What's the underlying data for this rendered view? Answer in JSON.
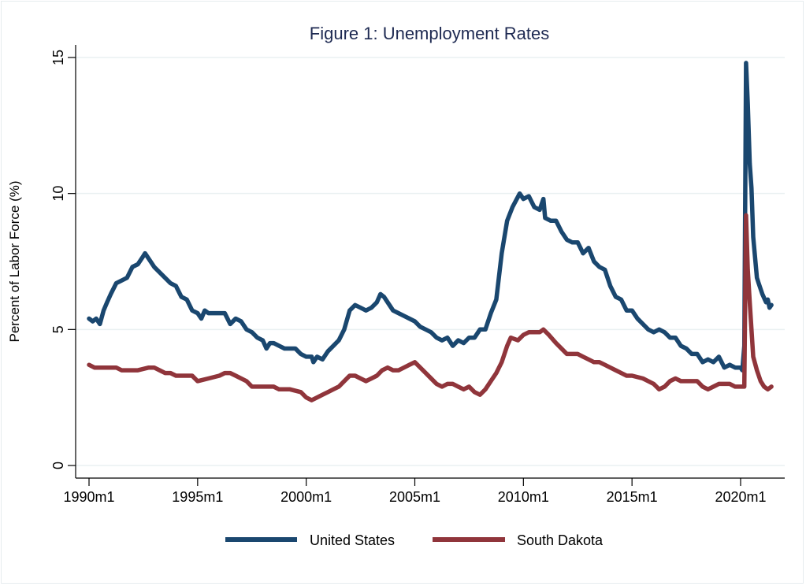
{
  "chart_data": {
    "type": "line",
    "title": "Figure 1: Unemployment Rates",
    "xlabel": "",
    "ylabel": "Percent of Labor Force (%)",
    "xlim": [
      1989.8,
      2022.0
    ],
    "ylim": [
      0,
      15
    ],
    "yticks": [
      0,
      5,
      10,
      15
    ],
    "ytick_labels": [
      "0",
      "5",
      "10",
      "15"
    ],
    "xticks": [
      1990,
      1995,
      2000,
      2005,
      2010,
      2015,
      2020
    ],
    "xtick_labels": [
      "1990m1",
      "1995m1",
      "2000m1",
      "2005m1",
      "2010m1",
      "2015m1",
      "2020m1"
    ],
    "grid": true,
    "legend_position": "bottom",
    "series": [
      {
        "name": "United States",
        "color": "#1a476f",
        "points": [
          [
            1990.0,
            5.4
          ],
          [
            1990.17,
            5.3
          ],
          [
            1990.33,
            5.4
          ],
          [
            1990.5,
            5.2
          ],
          [
            1990.67,
            5.7
          ],
          [
            1990.83,
            6.0
          ],
          [
            1991.0,
            6.3
          ],
          [
            1991.25,
            6.7
          ],
          [
            1991.5,
            6.8
          ],
          [
            1991.75,
            6.9
          ],
          [
            1992.0,
            7.3
          ],
          [
            1992.25,
            7.4
          ],
          [
            1992.5,
            7.7
          ],
          [
            1992.58,
            7.8
          ],
          [
            1992.75,
            7.6
          ],
          [
            1993.0,
            7.3
          ],
          [
            1993.25,
            7.1
          ],
          [
            1993.5,
            6.9
          ],
          [
            1993.75,
            6.7
          ],
          [
            1994.0,
            6.6
          ],
          [
            1994.25,
            6.2
          ],
          [
            1994.5,
            6.1
          ],
          [
            1994.75,
            5.7
          ],
          [
            1995.0,
            5.6
          ],
          [
            1995.17,
            5.4
          ],
          [
            1995.33,
            5.7
          ],
          [
            1995.5,
            5.6
          ],
          [
            1995.75,
            5.6
          ],
          [
            1996.0,
            5.6
          ],
          [
            1996.25,
            5.6
          ],
          [
            1996.5,
            5.2
          ],
          [
            1996.75,
            5.4
          ],
          [
            1997.0,
            5.3
          ],
          [
            1997.25,
            5.0
          ],
          [
            1997.5,
            4.9
          ],
          [
            1997.75,
            4.7
          ],
          [
            1998.0,
            4.6
          ],
          [
            1998.17,
            4.3
          ],
          [
            1998.33,
            4.5
          ],
          [
            1998.5,
            4.5
          ],
          [
            1998.75,
            4.4
          ],
          [
            1999.0,
            4.3
          ],
          [
            1999.25,
            4.3
          ],
          [
            1999.5,
            4.3
          ],
          [
            1999.75,
            4.1
          ],
          [
            2000.0,
            4.0
          ],
          [
            2000.25,
            4.0
          ],
          [
            2000.33,
            3.8
          ],
          [
            2000.5,
            4.0
          ],
          [
            2000.75,
            3.9
          ],
          [
            2001.0,
            4.2
          ],
          [
            2001.25,
            4.4
          ],
          [
            2001.5,
            4.6
          ],
          [
            2001.75,
            5.0
          ],
          [
            2002.0,
            5.7
          ],
          [
            2002.25,
            5.9
          ],
          [
            2002.5,
            5.8
          ],
          [
            2002.75,
            5.7
          ],
          [
            2003.0,
            5.8
          ],
          [
            2003.25,
            6.0
          ],
          [
            2003.42,
            6.3
          ],
          [
            2003.58,
            6.2
          ],
          [
            2003.75,
            6.0
          ],
          [
            2004.0,
            5.7
          ],
          [
            2004.25,
            5.6
          ],
          [
            2004.5,
            5.5
          ],
          [
            2004.75,
            5.4
          ],
          [
            2005.0,
            5.3
          ],
          [
            2005.25,
            5.1
          ],
          [
            2005.5,
            5.0
          ],
          [
            2005.75,
            4.9
          ],
          [
            2006.0,
            4.7
          ],
          [
            2006.25,
            4.6
          ],
          [
            2006.5,
            4.7
          ],
          [
            2006.75,
            4.4
          ],
          [
            2007.0,
            4.6
          ],
          [
            2007.25,
            4.5
          ],
          [
            2007.5,
            4.7
          ],
          [
            2007.75,
            4.7
          ],
          [
            2008.0,
            5.0
          ],
          [
            2008.25,
            5.0
          ],
          [
            2008.5,
            5.6
          ],
          [
            2008.75,
            6.1
          ],
          [
            2009.0,
            7.8
          ],
          [
            2009.25,
            9.0
          ],
          [
            2009.5,
            9.5
          ],
          [
            2009.83,
            10.0
          ],
          [
            2010.0,
            9.8
          ],
          [
            2010.25,
            9.9
          ],
          [
            2010.5,
            9.5
          ],
          [
            2010.75,
            9.4
          ],
          [
            2010.92,
            9.8
          ],
          [
            2011.0,
            9.1
          ],
          [
            2011.25,
            9.0
          ],
          [
            2011.5,
            9.0
          ],
          [
            2011.75,
            8.6
          ],
          [
            2012.0,
            8.3
          ],
          [
            2012.25,
            8.2
          ],
          [
            2012.5,
            8.2
          ],
          [
            2012.75,
            7.8
          ],
          [
            2013.0,
            8.0
          ],
          [
            2013.25,
            7.5
          ],
          [
            2013.5,
            7.3
          ],
          [
            2013.75,
            7.2
          ],
          [
            2014.0,
            6.6
          ],
          [
            2014.25,
            6.2
          ],
          [
            2014.5,
            6.1
          ],
          [
            2014.75,
            5.7
          ],
          [
            2015.0,
            5.7
          ],
          [
            2015.25,
            5.4
          ],
          [
            2015.5,
            5.2
          ],
          [
            2015.75,
            5.0
          ],
          [
            2016.0,
            4.9
          ],
          [
            2016.25,
            5.0
          ],
          [
            2016.5,
            4.9
          ],
          [
            2016.75,
            4.7
          ],
          [
            2017.0,
            4.7
          ],
          [
            2017.25,
            4.4
          ],
          [
            2017.5,
            4.3
          ],
          [
            2017.75,
            4.1
          ],
          [
            2018.0,
            4.1
          ],
          [
            2018.25,
            3.8
          ],
          [
            2018.5,
            3.9
          ],
          [
            2018.75,
            3.8
          ],
          [
            2019.0,
            4.0
          ],
          [
            2019.25,
            3.6
          ],
          [
            2019.5,
            3.7
          ],
          [
            2019.75,
            3.6
          ],
          [
            2020.0,
            3.6
          ],
          [
            2020.08,
            3.5
          ],
          [
            2020.17,
            4.4
          ],
          [
            2020.25,
            14.8
          ],
          [
            2020.33,
            13.3
          ],
          [
            2020.42,
            11.1
          ],
          [
            2020.5,
            10.2
          ],
          [
            2020.58,
            8.4
          ],
          [
            2020.75,
            6.9
          ],
          [
            2020.83,
            6.7
          ],
          [
            2021.0,
            6.3
          ],
          [
            2021.17,
            6.0
          ],
          [
            2021.25,
            6.1
          ],
          [
            2021.33,
            5.8
          ],
          [
            2021.42,
            5.9
          ]
        ]
      },
      {
        "name": "South Dakota",
        "color": "#90353b",
        "points": [
          [
            1990.0,
            3.7
          ],
          [
            1990.25,
            3.6
          ],
          [
            1990.75,
            3.6
          ],
          [
            1991.25,
            3.6
          ],
          [
            1991.5,
            3.5
          ],
          [
            1992.0,
            3.5
          ],
          [
            1992.25,
            3.5
          ],
          [
            1992.75,
            3.6
          ],
          [
            1993.0,
            3.6
          ],
          [
            1993.25,
            3.5
          ],
          [
            1993.5,
            3.4
          ],
          [
            1993.75,
            3.4
          ],
          [
            1994.0,
            3.3
          ],
          [
            1994.75,
            3.3
          ],
          [
            1995.0,
            3.1
          ],
          [
            1995.5,
            3.2
          ],
          [
            1996.0,
            3.3
          ],
          [
            1996.25,
            3.4
          ],
          [
            1996.5,
            3.4
          ],
          [
            1996.75,
            3.3
          ],
          [
            1997.25,
            3.1
          ],
          [
            1997.5,
            2.9
          ],
          [
            1998.0,
            2.9
          ],
          [
            1998.5,
            2.9
          ],
          [
            1998.75,
            2.8
          ],
          [
            1999.25,
            2.8
          ],
          [
            1999.75,
            2.7
          ],
          [
            2000.0,
            2.5
          ],
          [
            2000.25,
            2.4
          ],
          [
            2000.5,
            2.5
          ],
          [
            2000.75,
            2.6
          ],
          [
            2001.0,
            2.7
          ],
          [
            2001.25,
            2.8
          ],
          [
            2001.5,
            2.9
          ],
          [
            2001.75,
            3.1
          ],
          [
            2002.0,
            3.3
          ],
          [
            2002.25,
            3.3
          ],
          [
            2002.5,
            3.2
          ],
          [
            2002.75,
            3.1
          ],
          [
            2003.0,
            3.2
          ],
          [
            2003.25,
            3.3
          ],
          [
            2003.5,
            3.5
          ],
          [
            2003.75,
            3.6
          ],
          [
            2004.0,
            3.5
          ],
          [
            2004.25,
            3.5
          ],
          [
            2004.5,
            3.6
          ],
          [
            2004.75,
            3.7
          ],
          [
            2005.0,
            3.8
          ],
          [
            2005.25,
            3.6
          ],
          [
            2005.5,
            3.4
          ],
          [
            2005.75,
            3.2
          ],
          [
            2006.0,
            3.0
          ],
          [
            2006.25,
            2.9
          ],
          [
            2006.5,
            3.0
          ],
          [
            2006.75,
            3.0
          ],
          [
            2007.0,
            2.9
          ],
          [
            2007.25,
            2.8
          ],
          [
            2007.5,
            2.9
          ],
          [
            2007.75,
            2.7
          ],
          [
            2008.0,
            2.6
          ],
          [
            2008.25,
            2.8
          ],
          [
            2008.5,
            3.1
          ],
          [
            2008.75,
            3.4
          ],
          [
            2009.0,
            3.8
          ],
          [
            2009.25,
            4.4
          ],
          [
            2009.42,
            4.7
          ],
          [
            2009.75,
            4.6
          ],
          [
            2010.0,
            4.8
          ],
          [
            2010.25,
            4.9
          ],
          [
            2010.5,
            4.9
          ],
          [
            2010.75,
            4.9
          ],
          [
            2010.92,
            5.0
          ],
          [
            2011.17,
            4.8
          ],
          [
            2011.5,
            4.5
          ],
          [
            2011.75,
            4.3
          ],
          [
            2012.0,
            4.1
          ],
          [
            2012.5,
            4.1
          ],
          [
            2012.75,
            4.0
          ],
          [
            2013.0,
            3.9
          ],
          [
            2013.25,
            3.8
          ],
          [
            2013.5,
            3.8
          ],
          [
            2013.75,
            3.7
          ],
          [
            2014.0,
            3.6
          ],
          [
            2014.25,
            3.5
          ],
          [
            2014.5,
            3.4
          ],
          [
            2014.75,
            3.3
          ],
          [
            2015.0,
            3.3
          ],
          [
            2015.5,
            3.2
          ],
          [
            2015.75,
            3.1
          ],
          [
            2016.0,
            3.0
          ],
          [
            2016.25,
            2.8
          ],
          [
            2016.5,
            2.9
          ],
          [
            2016.75,
            3.1
          ],
          [
            2017.0,
            3.2
          ],
          [
            2017.25,
            3.1
          ],
          [
            2017.75,
            3.1
          ],
          [
            2018.0,
            3.1
          ],
          [
            2018.25,
            2.9
          ],
          [
            2018.5,
            2.8
          ],
          [
            2018.75,
            2.9
          ],
          [
            2019.0,
            3.0
          ],
          [
            2019.5,
            3.0
          ],
          [
            2019.75,
            2.9
          ],
          [
            2020.17,
            2.9
          ],
          [
            2020.25,
            9.2
          ],
          [
            2020.33,
            7.2
          ],
          [
            2020.42,
            6.0
          ],
          [
            2020.58,
            4.0
          ],
          [
            2020.75,
            3.5
          ],
          [
            2020.92,
            3.1
          ],
          [
            2021.08,
            2.9
          ],
          [
            2021.25,
            2.8
          ],
          [
            2021.42,
            2.9
          ]
        ]
      }
    ]
  }
}
